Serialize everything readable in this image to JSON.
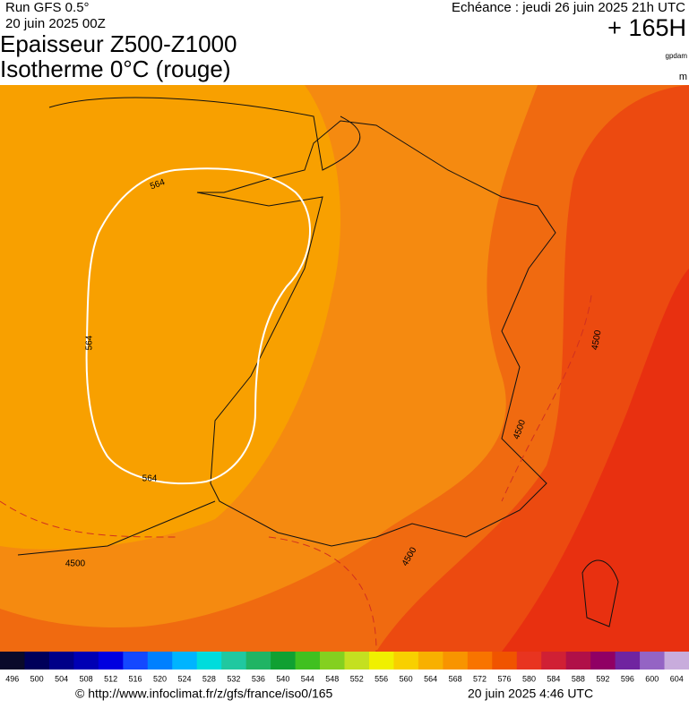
{
  "header": {
    "run": "Run GFS 0.5°",
    "run_date": "20 juin 2025 00Z",
    "title": "Epaisseur Z500-Z1000",
    "subtitle": "Isotherme 0°C (rouge)",
    "valid_time": "Echéance : jeudi 26 juin 2025 21h UTC",
    "lead": "+ 165H",
    "unit_thickness": "gpdam",
    "unit_iso": "m"
  },
  "map": {
    "contour_labels": [
      "564",
      "564",
      "564",
      "4500",
      "4500",
      "4500",
      "4500"
    ]
  },
  "colorbar": {
    "labels": [
      "496",
      "500",
      "504",
      "508",
      "512",
      "516",
      "520",
      "524",
      "528",
      "532",
      "536",
      "540",
      "544",
      "548",
      "552",
      "556",
      "560",
      "564",
      "568",
      "572",
      "576",
      "580",
      "584",
      "588",
      "592",
      "596",
      "600",
      "604"
    ],
    "colors": [
      "#0a0a2a",
      "#00005a",
      "#000088",
      "#0000b4",
      "#0000e0",
      "#1448ff",
      "#0080ff",
      "#00b4ff",
      "#00dcdc",
      "#20c8a0",
      "#20b464",
      "#10a032",
      "#40c020",
      "#84d020",
      "#c4e020",
      "#f0f000",
      "#f8d000",
      "#f8b000",
      "#f89400",
      "#f87400",
      "#f05400",
      "#e83420",
      "#d02034",
      "#b01048",
      "#900064",
      "#7024a0",
      "#9464c4",
      "#c8acdc"
    ]
  },
  "footer": {
    "url": "© http://www.infoclimat.fr/z/gfs/france/iso0/165",
    "generated": "20 juin 2025  4:46 UTC"
  }
}
